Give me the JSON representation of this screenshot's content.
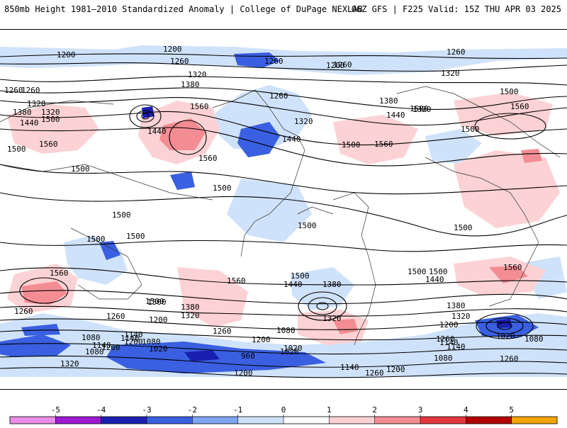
{
  "header": {
    "title_left": "850mb Height 1981–2010 Standardized Anomaly | College of DuPage NEXLAB",
    "title_right": "06Z GFS | F225 Valid: 15Z THU APR 03 2025"
  },
  "colorbar": {
    "labels": [
      "-5",
      "-4",
      "-3",
      "-2",
      "-1",
      "0",
      "1",
      "2",
      "3",
      "4",
      "5"
    ],
    "colors": [
      "#e88ce6",
      "#9b19d0",
      "#1a1fb0",
      "#3a5fe0",
      "#7fa6f5",
      "#cfe2fb",
      "#ffffff",
      "#fcd2d4",
      "#f38d93",
      "#e4383e",
      "#b00000",
      "#f5a400"
    ]
  },
  "contour_labels": [
    "1200",
    "1200",
    "1260",
    "1260",
    "1260",
    "1200",
    "1260",
    "1320",
    "1320",
    "1260",
    "1380",
    "1260",
    "1260",
    "1380",
    "1320",
    "1500",
    "1320",
    "1380",
    "1320",
    "1440",
    "1500",
    "1560",
    "1440",
    "1500",
    "1560",
    "1440",
    "1320",
    "1440",
    "1500",
    "1500",
    "1560",
    "1560",
    "1500",
    "1500",
    "1560",
    "1500",
    "1500",
    "1500",
    "1500",
    "1500",
    "1500",
    "1500",
    "1500",
    "1560",
    "1560",
    "1500",
    "1440",
    "1380",
    "1560",
    "1500",
    "1440",
    "1500",
    "1380",
    "1320",
    "1320",
    "1260",
    "1260",
    "1200",
    "1140",
    "1140",
    "1080",
    "1080",
    "1260",
    "1200",
    "1140",
    "1020",
    "1080",
    "1020",
    "1080",
    "1200",
    "1260",
    "1380",
    "1320",
    "1200",
    "1140",
    "1140",
    "1080",
    "1260",
    "1020",
    "960",
    "1200",
    "1020",
    "1140",
    "1260",
    "1200",
    "1260",
    "1080",
    "1320"
  ]
}
